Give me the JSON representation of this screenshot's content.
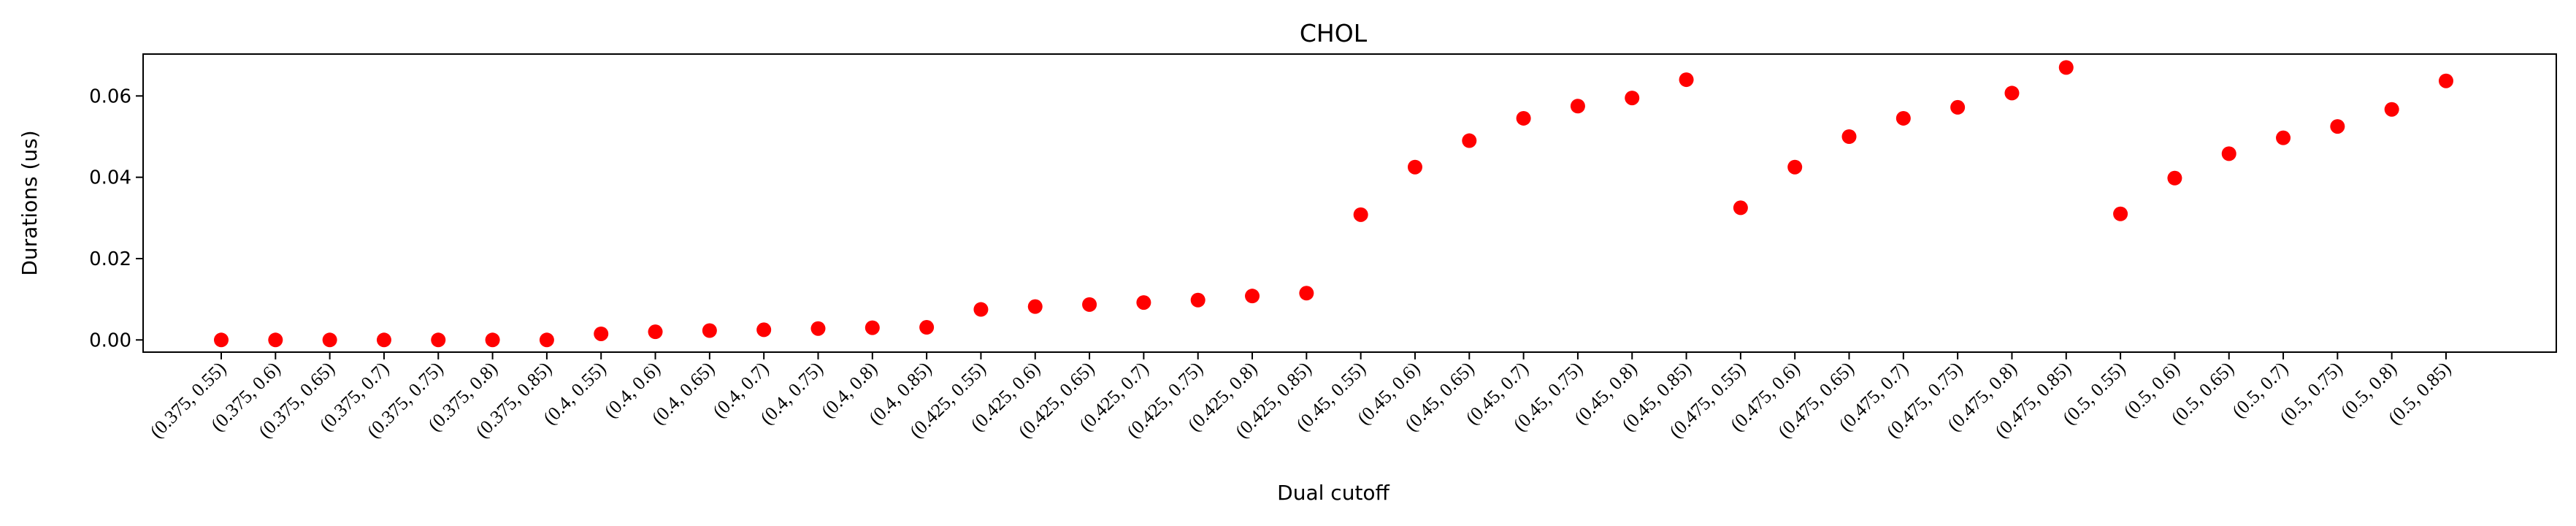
{
  "chart_data": {
    "type": "scatter",
    "title": "CHOL",
    "xlabel": "Dual cutoff",
    "ylabel": "Durations (us)",
    "ylim": [
      -0.003,
      0.0703
    ],
    "yticks": [
      0.0,
      0.02,
      0.04,
      0.06
    ],
    "ytick_labels": [
      "0.00",
      "0.02",
      "0.04",
      "0.06"
    ],
    "marker_color": "#ff0000",
    "categories": [
      "(0.375, 0.55)",
      "(0.375, 0.6)",
      "(0.375, 0.65)",
      "(0.375, 0.7)",
      "(0.375, 0.75)",
      "(0.375, 0.8)",
      "(0.375, 0.85)",
      "(0.4, 0.55)",
      "(0.4, 0.6)",
      "(0.4, 0.65)",
      "(0.4, 0.7)",
      "(0.4, 0.75)",
      "(0.4, 0.8)",
      "(0.4, 0.85)",
      "(0.425, 0.55)",
      "(0.425, 0.6)",
      "(0.425, 0.65)",
      "(0.425, 0.7)",
      "(0.425, 0.75)",
      "(0.425, 0.8)",
      "(0.425, 0.85)",
      "(0.45, 0.55)",
      "(0.45, 0.6)",
      "(0.45, 0.65)",
      "(0.45, 0.7)",
      "(0.45, 0.75)",
      "(0.45, 0.8)",
      "(0.45, 0.85)",
      "(0.475, 0.55)",
      "(0.475, 0.6)",
      "(0.475, 0.65)",
      "(0.475, 0.7)",
      "(0.475, 0.75)",
      "(0.475, 0.8)",
      "(0.475, 0.85)",
      "(0.5, 0.55)",
      "(0.5, 0.6)",
      "(0.5, 0.65)",
      "(0.5, 0.7)",
      "(0.5, 0.75)",
      "(0.5, 0.8)",
      "(0.5, 0.85)"
    ],
    "values": [
      0.0,
      0.0,
      0.0,
      0.0,
      0.0,
      0.0,
      0.0,
      0.0015,
      0.002,
      0.0023,
      0.0025,
      0.0028,
      0.003,
      0.0031,
      0.0075,
      0.0082,
      0.0087,
      0.0092,
      0.0098,
      0.0108,
      0.0115,
      0.0308,
      0.0425,
      0.049,
      0.0545,
      0.0575,
      0.0595,
      0.064,
      0.0325,
      0.0425,
      0.05,
      0.0545,
      0.0572,
      0.0607,
      0.067,
      0.031,
      0.0398,
      0.0458,
      0.0497,
      0.0525,
      0.0567,
      0.0637
    ]
  }
}
